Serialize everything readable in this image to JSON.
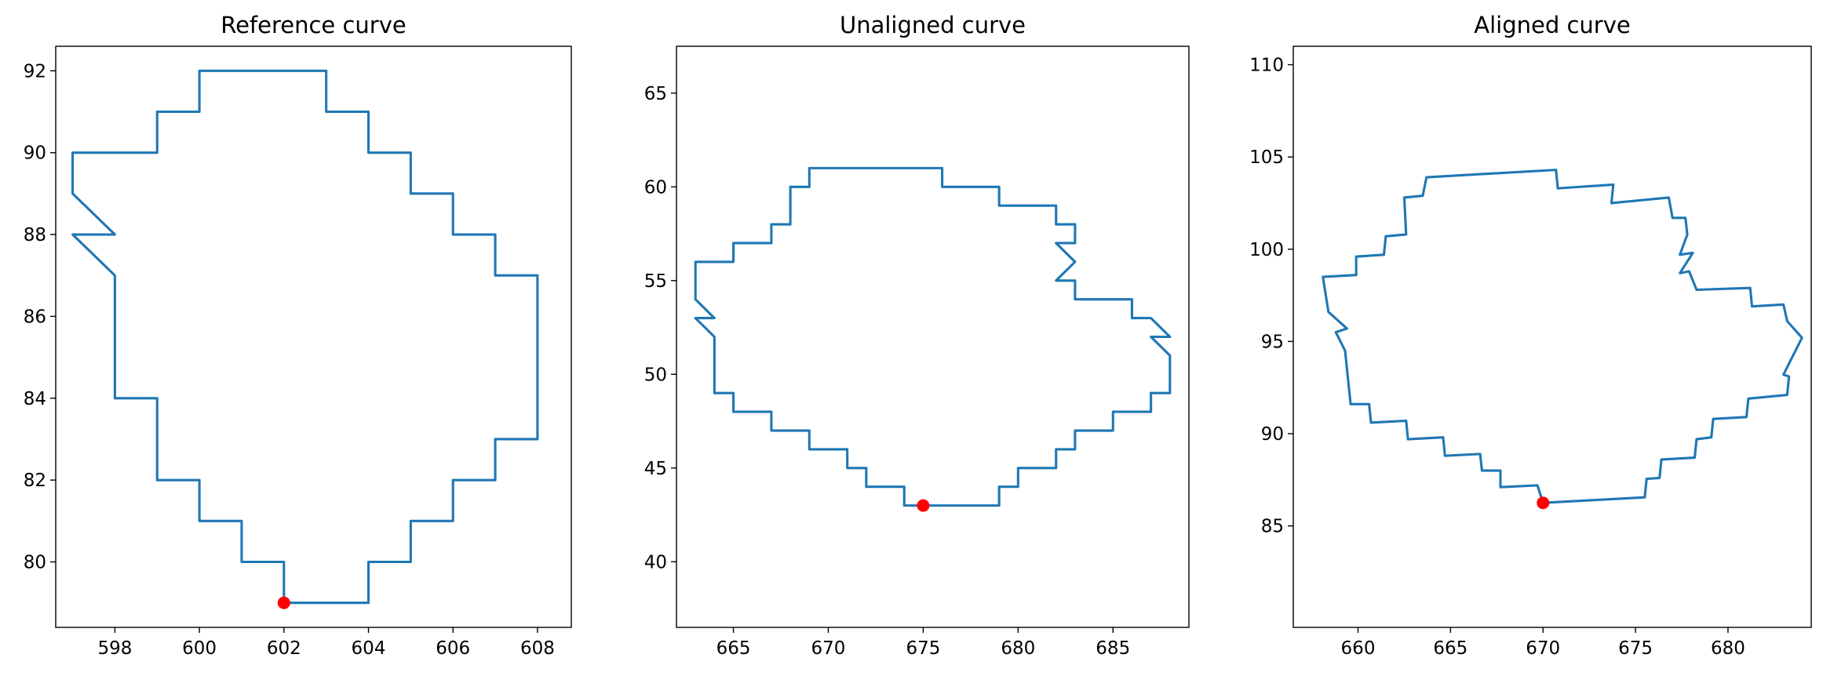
{
  "style": {
    "curve_color": "#1f77b4",
    "start_marker_color": "#ff0000",
    "background": "#ffffff"
  },
  "chart_data": [
    {
      "type": "line",
      "title": "Reference curve",
      "xlim": [
        596.6,
        608.8
      ],
      "ylim": [
        78.4,
        92.6
      ],
      "xticks": [
        598,
        600,
        602,
        604,
        606,
        608
      ],
      "yticks": [
        80,
        82,
        84,
        86,
        88,
        90,
        92
      ],
      "grid": false,
      "start_point": [
        602,
        79
      ],
      "x": [
        602,
        604,
        604,
        605,
        605,
        606,
        606,
        607,
        607,
        608,
        608,
        607,
        607,
        606,
        606,
        605,
        605,
        604,
        604,
        603,
        603,
        600,
        600,
        599,
        599,
        597,
        597,
        598,
        597,
        598,
        598,
        599,
        599,
        600,
        600,
        601,
        601,
        602,
        602
      ],
      "y": [
        79,
        79,
        80,
        80,
        81,
        81,
        82,
        82,
        83,
        83,
        87,
        87,
        88,
        88,
        89,
        89,
        90,
        90,
        91,
        91,
        92,
        92,
        91,
        91,
        90,
        90,
        89,
        88,
        88,
        87,
        84,
        84,
        82,
        82,
        81,
        81,
        80,
        80,
        79
      ]
    },
    {
      "type": "line",
      "title": "Unaligned curve",
      "xlim": [
        662,
        689
      ],
      "ylim": [
        36.5,
        67.5
      ],
      "xticks": [
        665,
        670,
        675,
        680,
        685
      ],
      "yticks": [
        40,
        45,
        50,
        55,
        60,
        65
      ],
      "grid": false,
      "start_point": [
        675,
        43
      ],
      "x": [
        675,
        679,
        679,
        680,
        680,
        682,
        682,
        683,
        683,
        685,
        685,
        687,
        687,
        688,
        688,
        687,
        688,
        687,
        687,
        686,
        686,
        683,
        683,
        682,
        683,
        682,
        683,
        683,
        682,
        682,
        679,
        679,
        676,
        676,
        669,
        669,
        668,
        668,
        667,
        667,
        665,
        665,
        663,
        663,
        664,
        663,
        664,
        664,
        665,
        665,
        667,
        667,
        669,
        669,
        671,
        671,
        672,
        672,
        674,
        674,
        675
      ],
      "y": [
        43,
        43,
        44,
        44,
        45,
        45,
        46,
        46,
        47,
        47,
        48,
        48,
        49,
        49,
        51,
        52,
        52,
        53,
        53,
        53,
        54,
        54,
        55,
        55,
        56,
        57,
        57,
        58,
        58,
        59,
        59,
        60,
        60,
        61,
        61,
        60,
        60,
        58,
        58,
        57,
        57,
        56,
        56,
        54,
        53,
        53,
        52,
        49,
        49,
        48,
        48,
        47,
        47,
        46,
        46,
        45,
        45,
        44,
        44,
        43,
        43
      ]
    },
    {
      "type": "line",
      "title": "Aligned curve",
      "xlim": [
        656.5,
        684.5
      ],
      "ylim": [
        79.5,
        111
      ],
      "xticks": [
        660,
        665,
        670,
        675,
        680
      ],
      "yticks": [
        85,
        90,
        95,
        100,
        105,
        110
      ],
      "grid": false,
      "start_point": [
        670,
        86.25
      ],
      "x": [
        670,
        675.5,
        675.6,
        676.3,
        676.4,
        678.2,
        678.3,
        679.1,
        679.2,
        681,
        681.1,
        683.2,
        683.3,
        683,
        684,
        683.2,
        683,
        681.3,
        681.2,
        678.3,
        677.9,
        677.4,
        678.1,
        677.4,
        677.8,
        677.7,
        677,
        676.8,
        673.7,
        673.8,
        670.8,
        670.7,
        663.7,
        663.5,
        662.5,
        662.6,
        661.5,
        661.4,
        659.9,
        659.9,
        658.1,
        658.4,
        659.4,
        658.8,
        659.3,
        659.6,
        660.6,
        660.7,
        662.6,
        662.7,
        664.6,
        664.7,
        666.6,
        666.7,
        667.7,
        667.7,
        669.7,
        670
      ],
      "y": [
        86.25,
        86.55,
        87.55,
        87.6,
        88.6,
        88.7,
        89.7,
        89.8,
        90.8,
        90.9,
        91.9,
        92.1,
        93.1,
        93.2,
        95.2,
        96.1,
        97,
        96.9,
        97.9,
        97.8,
        98.8,
        98.7,
        99.8,
        99.7,
        100.8,
        101.7,
        101.7,
        102.8,
        102.5,
        103.5,
        103.3,
        104.3,
        103.9,
        102.9,
        102.8,
        100.8,
        100.7,
        99.7,
        99.6,
        98.6,
        98.5,
        96.6,
        95.7,
        95.5,
        94.5,
        91.6,
        91.6,
        90.6,
        90.7,
        89.7,
        89.8,
        88.8,
        88.9,
        88,
        88,
        87.1,
        87.2,
        86.25
      ]
    }
  ]
}
